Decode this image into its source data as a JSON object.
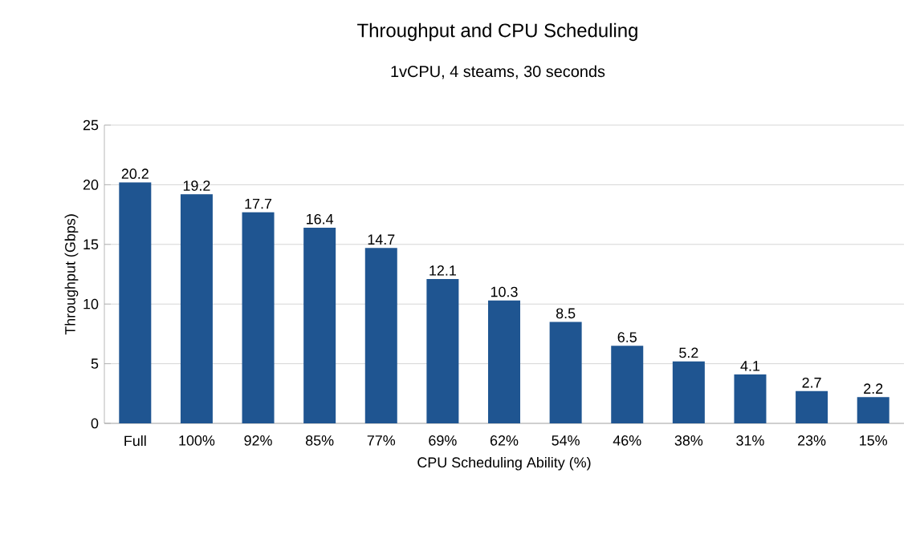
{
  "chart_data": {
    "type": "bar",
    "title": "Throughput and CPU Scheduling",
    "subtitle": "1vCPU, 4 steams, 30 seconds",
    "xlabel": "CPU Scheduling Ability (%)",
    "ylabel": "Throughput (Gbps)",
    "categories": [
      "Full",
      "100%",
      "92%",
      "85%",
      "77%",
      "69%",
      "62%",
      "54%",
      "46%",
      "38%",
      "31%",
      "23%",
      "15%"
    ],
    "values": [
      20.2,
      19.2,
      17.7,
      16.4,
      14.7,
      12.1,
      10.3,
      8.5,
      6.5,
      5.2,
      4.1,
      2.7,
      2.2
    ],
    "color": "#1f5591",
    "ylim": [
      0,
      25
    ],
    "yticks": [
      0,
      5,
      10,
      15,
      20,
      25
    ],
    "grid": "y",
    "data_labels": true
  }
}
